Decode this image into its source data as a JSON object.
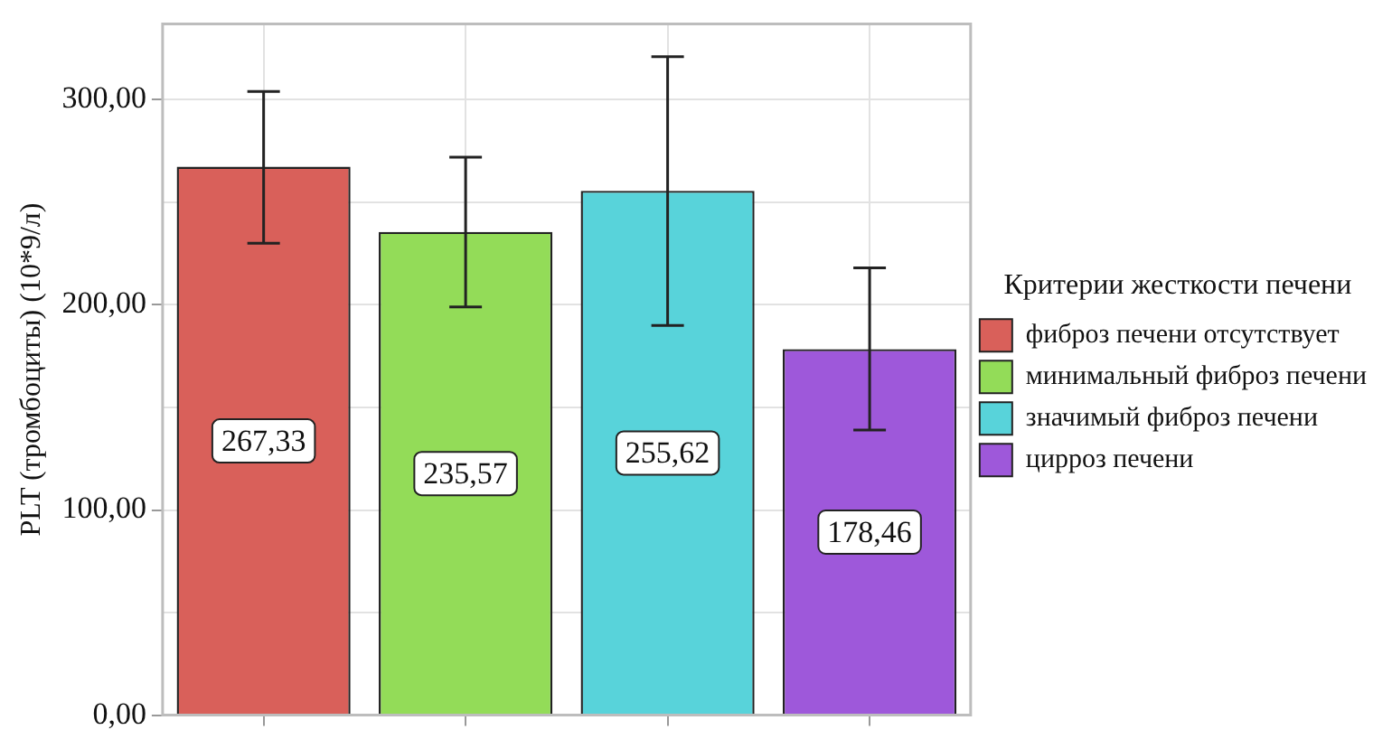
{
  "chart_data": {
    "type": "bar",
    "ylabel": "PLT (тромбоциты) (10*9/л)",
    "legend_title": "Критерии жесткости печени",
    "categories": [
      null,
      null,
      null,
      null
    ],
    "series": [
      {
        "name": "фиброз печени отсутствует",
        "color": "#d9605a",
        "values": [
          267.33,
          null,
          null,
          null
        ],
        "value_labels": [
          "267,33",
          null,
          null,
          null
        ],
        "errors": [
          [
            230,
            304
          ],
          null,
          null,
          null
        ]
      },
      {
        "name": "минимальный фиброз печени",
        "color": "#93dc58",
        "values": [
          null,
          235.57,
          null,
          null
        ],
        "value_labels": [
          null,
          "235,57",
          null,
          null
        ],
        "errors": [
          null,
          [
            199,
            272
          ],
          null,
          null
        ]
      },
      {
        "name": "значимый фиброз печени",
        "color": "#58d3da",
        "values": [
          null,
          null,
          255.62,
          null
        ],
        "value_labels": [
          null,
          null,
          "255,62",
          null
        ],
        "errors": [
          null,
          null,
          [
            190,
            321
          ],
          null
        ]
      },
      {
        "name": "цирроз печени",
        "color": "#9e58da",
        "values": [
          null,
          null,
          null,
          178.46
        ],
        "value_labels": [
          null,
          null,
          null,
          "178,46"
        ],
        "errors": [
          null,
          null,
          null,
          [
            139,
            218
          ]
        ]
      }
    ],
    "ylim": [
      0,
      337
    ],
    "yticks": [
      {
        "value": 0,
        "label": "0,00"
      },
      {
        "value": 50,
        "label": null
      },
      {
        "value": 100,
        "label": "100,00"
      },
      {
        "value": 150,
        "label": null
      },
      {
        "value": 200,
        "label": "200,00"
      },
      {
        "value": 250,
        "label": null
      },
      {
        "value": 300,
        "label": "300,00"
      }
    ],
    "grid": true,
    "legend": "right",
    "tick_labels": "y"
  }
}
